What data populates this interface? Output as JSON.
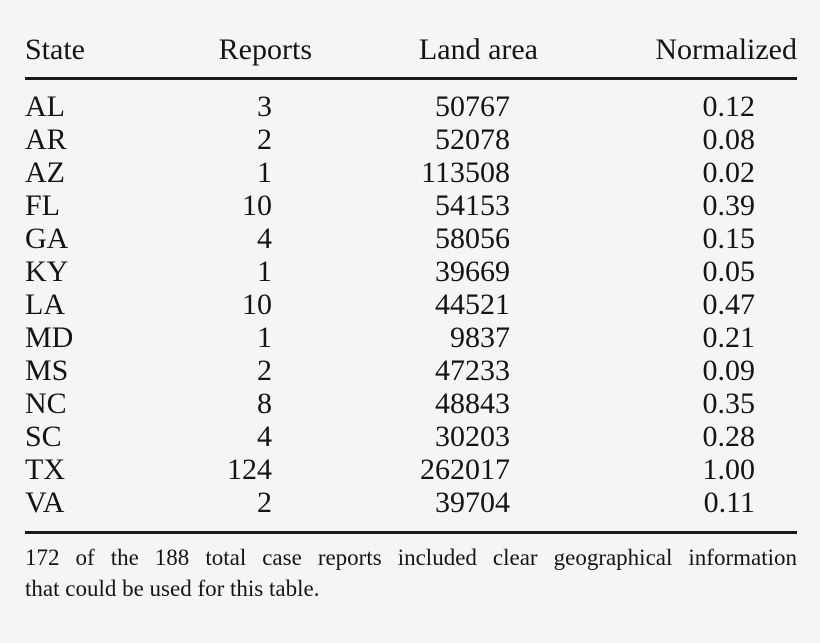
{
  "page": {
    "background_color": "#f5f5f5",
    "text_color": "#141414",
    "rule_color": "#1a1a1a"
  },
  "table": {
    "columns": [
      {
        "key": "state",
        "label": "State"
      },
      {
        "key": "reports",
        "label": "Reports"
      },
      {
        "key": "land-area",
        "label": "Land area"
      },
      {
        "key": "normalized",
        "label": "Normalized"
      }
    ],
    "rows": [
      [
        "AL",
        "3",
        "50767",
        "0.12"
      ],
      [
        "AR",
        "2",
        "52078",
        "0.08"
      ],
      [
        "AZ",
        "1",
        "113508",
        "0.02"
      ],
      [
        "FL",
        "10",
        "54153",
        "0.39"
      ],
      [
        "GA",
        "4",
        "58056",
        "0.15"
      ],
      [
        "KY",
        "1",
        "39669",
        "0.05"
      ],
      [
        "LA",
        "10",
        "44521",
        "0.47"
      ],
      [
        "MD",
        "1",
        "9837",
        "0.21"
      ],
      [
        "MS",
        "2",
        "47233",
        "0.09"
      ],
      [
        "NC",
        "8",
        "48843",
        "0.35"
      ],
      [
        "SC",
        "4",
        "30203",
        "0.28"
      ],
      [
        "TX",
        "124",
        "262017",
        "1.00"
      ],
      [
        "VA",
        "2",
        "39704",
        "0.11"
      ]
    ]
  },
  "footnote": {
    "line1": "172 of the 188 total case reports included clear geographical information",
    "line2": "that could be used for this table."
  }
}
